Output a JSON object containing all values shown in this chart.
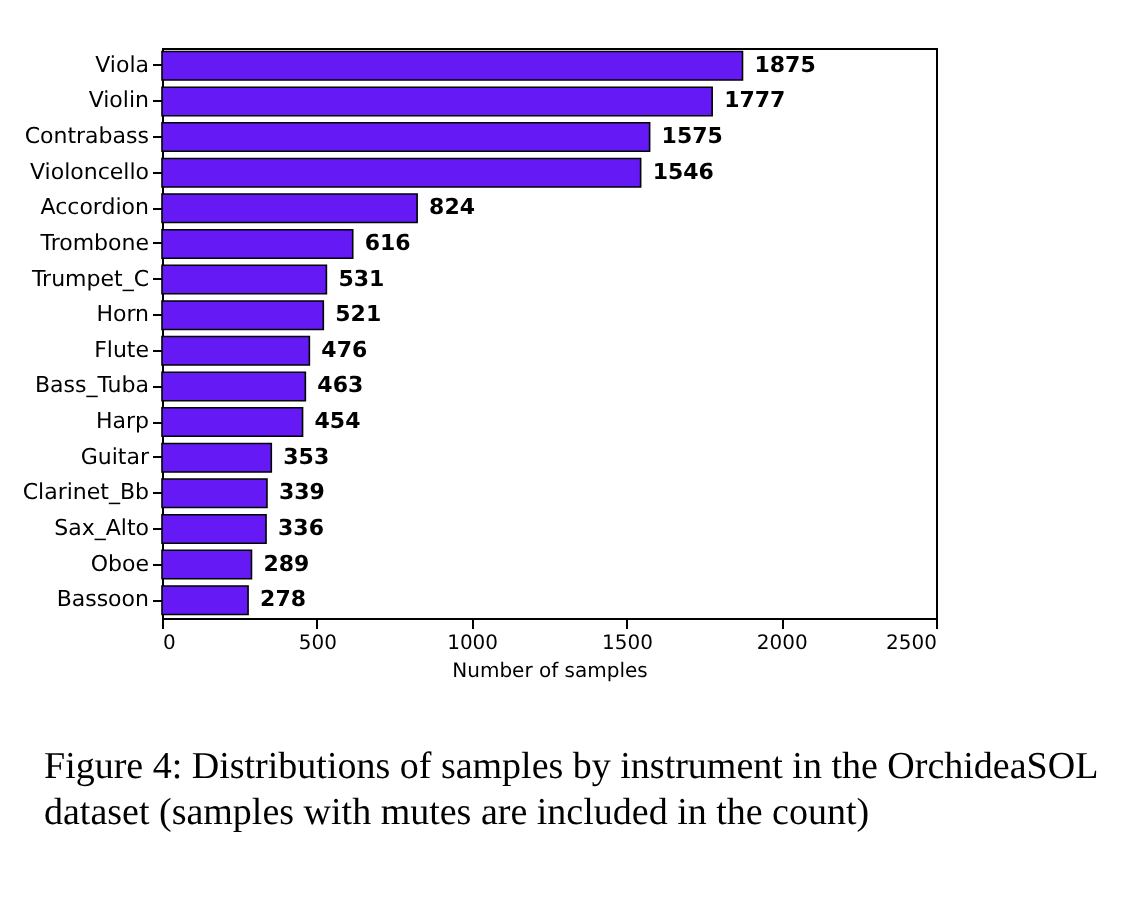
{
  "chart_data": {
    "type": "bar",
    "orientation": "horizontal",
    "xlabel": "Number of samples",
    "categories": [
      "Viola",
      "Violin",
      "Contrabass",
      "Violoncello",
      "Accordion",
      "Trombone",
      "Trumpet_C",
      "Horn",
      "Flute",
      "Bass_Tuba",
      "Harp",
      "Guitar",
      "Clarinet_Bb",
      "Sax_Alto",
      "Oboe",
      "Bassoon"
    ],
    "values": [
      1875,
      1777,
      1575,
      1546,
      824,
      616,
      531,
      521,
      476,
      463,
      454,
      353,
      339,
      336,
      289,
      278
    ],
    "color": "#6419f5",
    "xlim": [
      0,
      2500
    ],
    "xticks": [
      0,
      500,
      1000,
      1500,
      2000,
      2500
    ],
    "grid": false,
    "data_labels": true,
    "annotations": [
      "Figure 4: Distributions of samples by instrument in the OrchideaSOL dataset (samples with mutes are included in the count)"
    ]
  }
}
